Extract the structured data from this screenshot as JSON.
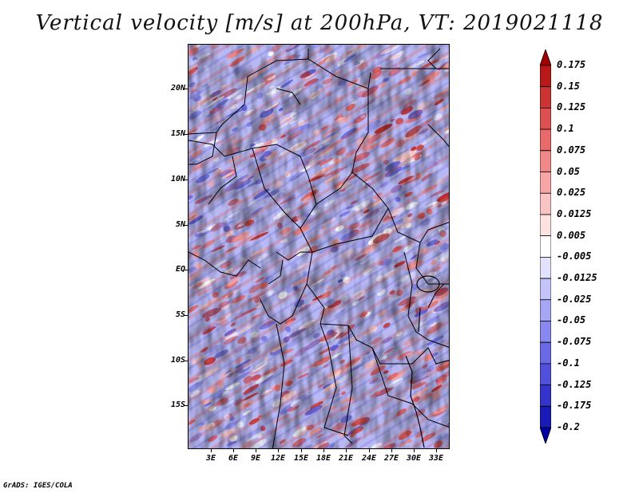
{
  "title": "Vertical velocity [m/s] at 200hPa, VT: 2019021118",
  "lat_labels": [
    "20N",
    "15N",
    "10N",
    "5N",
    "EQ",
    "5S",
    "10S",
    "15S"
  ],
  "lon_labels": [
    "3E",
    "6E",
    "9E",
    "12E",
    "15E",
    "18E",
    "21E",
    "24E",
    "27E",
    "30E",
    "33E"
  ],
  "colorbar": {
    "labels": [
      "0.175",
      "0.15",
      "0.125",
      "0.1",
      "0.075",
      "0.05",
      "0.025",
      "0.0125",
      "0.005",
      "-0.005",
      "-0.0125",
      "-0.025",
      "-0.05",
      "-0.075",
      "-0.1",
      "-0.125",
      "-0.175",
      "-0.2"
    ],
    "colors": [
      "#a00000",
      "#b81a1a",
      "#cc3434",
      "#dd5050",
      "#e86a6a",
      "#f08888",
      "#f6a6a6",
      "#fbc4c4",
      "#fde2e2",
      "#ffffff",
      "#e2e2fd",
      "#c4c4fa",
      "#a6a6f4",
      "#8888ee",
      "#6a6ae6",
      "#5050dc",
      "#3434cc",
      "#1a1ab6",
      "#0000a0"
    ]
  },
  "credit": "GrADS: IGES/COLA"
}
